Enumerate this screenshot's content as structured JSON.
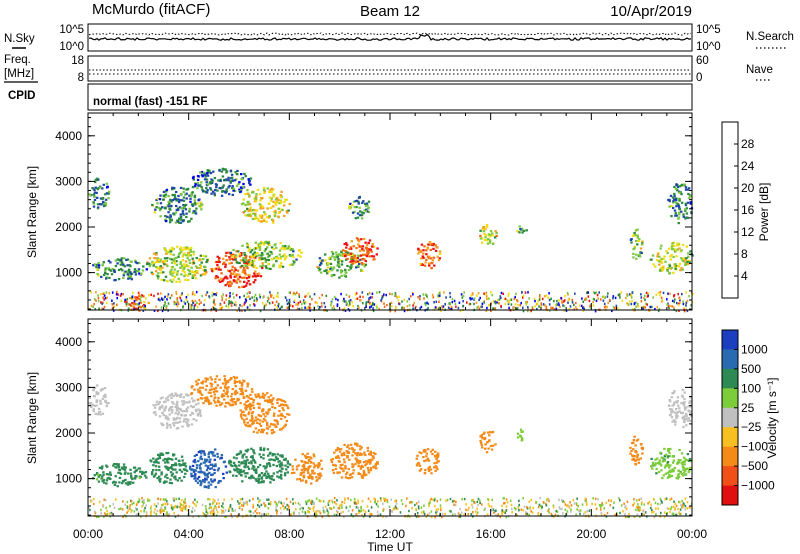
{
  "header": {
    "station": "McMurdo (fitACF)",
    "beam": "Beam 12",
    "date": "10/Apr/2019"
  },
  "noise_panel": {
    "left_label": "N.Sky",
    "right_label": "N.Search",
    "left_ticks": [
      "10^5",
      "10^0"
    ],
    "right_ticks": [
      "10^5",
      "10^0"
    ]
  },
  "freq_panel": {
    "left_label_1": "Freq.",
    "left_label_2": "[MHz]",
    "right_label": "Nave",
    "left_ticks": [
      "18",
      "8"
    ],
    "right_ticks": [
      "60",
      "0"
    ]
  },
  "cpid_panel": {
    "label": "CPID",
    "text": "normal (fast) -151 RF"
  },
  "power_panel": {
    "ylabel": "Slant Range [km]",
    "colorbar_label": "Power [dB]",
    "colorbar_ticks": [
      "28",
      "24",
      "20",
      "16",
      "12",
      "8",
      "4"
    ],
    "colors": [
      "#0000ee",
      "#1e47a8",
      "#2a8a3a",
      "#7ac840",
      "#f0dc10",
      "#f7a020",
      "#f26a10",
      "#ee1010"
    ]
  },
  "velocity_panel": {
    "ylabel": "Slant Range [km]",
    "colorbar_label": "Velocity [m s⁻¹]",
    "colorbar_ticks": [
      "1000",
      "500",
      "100",
      "25",
      "−25",
      "−100",
      "−500",
      "−1000"
    ],
    "colors": [
      "#1c3fc0",
      "#2a6ab0",
      "#2e8a55",
      "#7dcc3a",
      "#c0c0c0",
      "#f7c020",
      "#f48a18",
      "#f05018",
      "#e01010"
    ]
  },
  "x_axis": {
    "label": "Time UT",
    "ticks": [
      "00:00",
      "04:00",
      "08:00",
      "12:00",
      "16:00",
      "20:00",
      "00:00"
    ]
  },
  "chart_data": [
    {
      "type": "heatmap",
      "title": "Power [dB]",
      "xlabel": "Time UT",
      "ylabel": "Slant Range [km]",
      "xlim": [
        0,
        24
      ],
      "ylim": [
        180,
        4500
      ],
      "yticks": [
        1000,
        2000,
        3000,
        4000
      ],
      "zticks": [
        4,
        8,
        12,
        16,
        20,
        24,
        28
      ],
      "blobs": [
        {
          "t0": 0.1,
          "t1": 2.3,
          "r0": 850,
          "r1": 1350,
          "v": 10
        },
        {
          "t0": 1.4,
          "t1": 2.4,
          "r0": 180,
          "r1": 550,
          "v": 26
        },
        {
          "t0": 2.3,
          "t1": 4.8,
          "r0": 800,
          "r1": 1600,
          "v": 16
        },
        {
          "t0": 4.8,
          "t1": 7.0,
          "r0": 700,
          "r1": 1500,
          "v": 27
        },
        {
          "t0": 5.5,
          "t1": 8.5,
          "r0": 1100,
          "r1": 1700,
          "v": 14
        },
        {
          "t0": 2.5,
          "t1": 4.5,
          "r0": 2100,
          "r1": 2900,
          "v": 9
        },
        {
          "t0": 4.0,
          "t1": 6.5,
          "r0": 2700,
          "r1": 3300,
          "v": 8
        },
        {
          "t0": 6.0,
          "t1": 8.0,
          "r0": 2100,
          "r1": 2900,
          "v": 18
        },
        {
          "t0": 0.0,
          "t1": 0.8,
          "r0": 2400,
          "r1": 3100,
          "v": 9
        },
        {
          "t0": 9.0,
          "t1": 11.0,
          "r0": 900,
          "r1": 1500,
          "v": 13
        },
        {
          "t0": 10.0,
          "t1": 11.5,
          "r0": 1200,
          "r1": 1800,
          "v": 27
        },
        {
          "t0": 10.3,
          "t1": 11.2,
          "r0": 2200,
          "r1": 2700,
          "v": 10
        },
        {
          "t0": 13.0,
          "t1": 14.0,
          "r0": 1100,
          "r1": 1700,
          "v": 26
        },
        {
          "t0": 15.5,
          "t1": 16.2,
          "r0": 1600,
          "r1": 2100,
          "v": 17
        },
        {
          "t0": 17.0,
          "t1": 17.4,
          "r0": 1850,
          "r1": 2100,
          "v": 12
        },
        {
          "t0": 21.5,
          "t1": 22.0,
          "r0": 1300,
          "r1": 2000,
          "v": 14
        },
        {
          "t0": 22.3,
          "t1": 24.0,
          "r0": 1000,
          "r1": 1700,
          "v": 16
        },
        {
          "t0": 23.0,
          "t1": 24.0,
          "r0": 2100,
          "r1": 3000,
          "v": 10
        }
      ]
    },
    {
      "type": "heatmap",
      "title": "Velocity [m s⁻¹]",
      "xlabel": "Time UT",
      "ylabel": "Slant Range [km]",
      "xlim": [
        0,
        24
      ],
      "ylim": [
        180,
        4500
      ],
      "yticks": [
        1000,
        2000,
        3000,
        4000
      ],
      "zticks": [
        1000,
        500,
        100,
        25,
        -25,
        -100,
        -500,
        -1000
      ],
      "blobs": [
        {
          "t0": 0.1,
          "t1": 2.3,
          "r0": 850,
          "r1": 1350,
          "v": 150
        },
        {
          "t0": 2.3,
          "t1": 4.0,
          "r0": 900,
          "r1": 1600,
          "v": 200
        },
        {
          "t0": 4.0,
          "t1": 5.5,
          "r0": 800,
          "r1": 1700,
          "v": 900
        },
        {
          "t0": 5.5,
          "t1": 8.0,
          "r0": 900,
          "r1": 1700,
          "v": 250
        },
        {
          "t0": 8.0,
          "t1": 9.3,
          "r0": 900,
          "r1": 1600,
          "v": -150
        },
        {
          "t0": 9.5,
          "t1": 11.5,
          "r0": 1000,
          "r1": 1800,
          "v": -200
        },
        {
          "t0": 2.5,
          "t1": 4.5,
          "r0": 2100,
          "r1": 2900,
          "v": 0
        },
        {
          "t0": 4.0,
          "t1": 6.5,
          "r0": 2600,
          "r1": 3300,
          "v": -200
        },
        {
          "t0": 6.0,
          "t1": 8.0,
          "r0": 2000,
          "r1": 2900,
          "v": -200
        },
        {
          "t0": 0.0,
          "t1": 0.8,
          "r0": 2400,
          "r1": 3100,
          "v": 0
        },
        {
          "t0": 13.0,
          "t1": 14.0,
          "r0": 1100,
          "r1": 1700,
          "v": -200
        },
        {
          "t0": 15.5,
          "t1": 16.2,
          "r0": 1600,
          "r1": 2100,
          "v": -200
        },
        {
          "t0": 17.0,
          "t1": 17.4,
          "r0": 1850,
          "r1": 2100,
          "v": 60
        },
        {
          "t0": 21.5,
          "t1": 22.0,
          "r0": 1300,
          "r1": 2000,
          "v": -200
        },
        {
          "t0": 22.3,
          "t1": 24.0,
          "r0": 1000,
          "r1": 1700,
          "v": 80
        },
        {
          "t0": 23.0,
          "t1": 24.0,
          "r0": 2100,
          "r1": 3000,
          "v": 0
        }
      ]
    }
  ]
}
